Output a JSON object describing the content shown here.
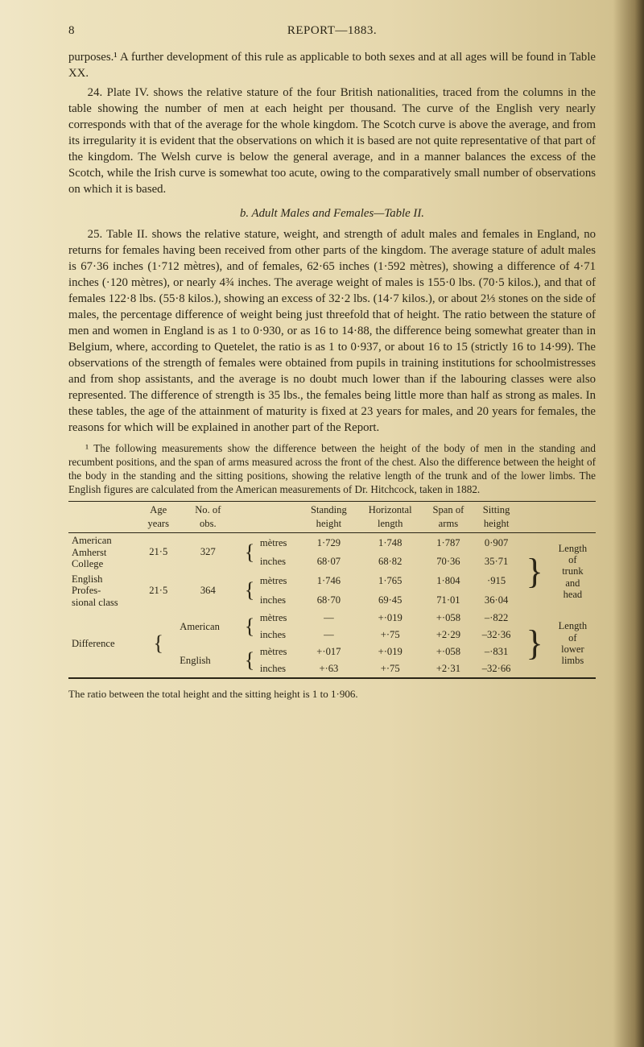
{
  "header": {
    "page_number": "8",
    "running": "REPORT—1883."
  },
  "para1": "purposes.¹ A further development of this rule as applicable to both sexes and at all ages will be found in Table XX.",
  "para2": "24. Plate IV. shows the relative stature of the four British nationalities, traced from the columns in the table showing the number of men at each height per thousand. The curve of the English very nearly corresponds with that of the average for the whole kingdom. The Scotch curve is above the average, and from its irregularity it is evident that the observations on which it is based are not quite representative of that part of the kingdom. The Welsh curve is below the general average, and in a manner balances the excess of the Scotch, while the Irish curve is somewhat too acute, owing to the comparatively small number of observations on which it is based.",
  "section_b": "b. Adult Males and Females—Table II.",
  "para3": "25. Table II. shows the relative stature, weight, and strength of adult males and females in England, no returns for females having been received from other parts of the kingdom. The average stature of adult males is 67·36 inches (1·712 mètres), and of females, 62·65 inches (1·592 mètres), showing a difference of 4·71 inches (·120 mètres), or nearly 4¾ inches. The average weight of males is 155·0 lbs. (70·5 kilos.), and that of females 122·8 lbs. (55·8 kilos.), showing an excess of 32·2 lbs. (14·7 kilos.), or about 2⅓ stones on the side of males, the percentage difference of weight being just threefold that of height. The ratio between the stature of men and women in England is as 1 to 0·930, or as 16 to 14·88, the difference being somewhat greater than in Belgium, where, according to Quetelet, the ratio is as 1 to 0·937, or about 16 to 15 (strictly 16 to 14·99). The observations of the strength of females were obtained from pupils in training institutions for schoolmistresses and from shop assistants, and the average is no doubt much lower than if the labouring classes were also represented. The difference of strength is 35 lbs., the females being little more than half as strong as males. In these tables, the age of the attainment of maturity is fixed at 23 years for males, and 20 years for females, the reasons for which will be explained in another part of the Report.",
  "footnote": "¹ The following measurements show the difference between the height of the body of men in the standing and recumbent positions, and the span of arms measured across the front of the chest. Also the difference between the height of the body in the standing and the sitting positions, showing the relative length of the trunk and of the lower limbs. The English figures are calculated from the American measurements of Dr. Hitchcock, taken in 1882.",
  "table": {
    "headers": {
      "age": "Age\nyears",
      "no": "No. of\nobs.",
      "standing": "Standing\nheight",
      "horizontal": "Horizontal\nlength",
      "span": "Span of\narms",
      "sitting": "Sitting\nheight"
    },
    "rows": {
      "r1_label": "American\nAmherst\nCollege",
      "r1_age": "21·5",
      "r1_no": "327",
      "r1_unit_m": "mètres",
      "r1_unit_i": "inches",
      "r1_stand_m": "1·729",
      "r1_stand_i": "68·07",
      "r1_horiz_m": "1·748",
      "r1_horiz_i": "68·82",
      "r1_span_m": "1·787",
      "r1_span_i": "70·36",
      "r1_sit_m": "0·907",
      "r1_sit_i": "35·71",
      "r1_note": "Length\nof\ntrunk\nand\nhead",
      "r2_label": "English\nProfes-\nsional class",
      "r2_age": "21·5",
      "r2_no": "364",
      "r2_unit_m": "mètres",
      "r2_unit_i": "inches",
      "r2_stand_m": "1·746",
      "r2_stand_i": "68·70",
      "r2_horiz_m": "1·765",
      "r2_horiz_i": "69·45",
      "r2_span_m": "1·804",
      "r2_span_i": "71·01",
      "r2_sit_m": "·915",
      "r2_sit_i": "36·04",
      "r3_label": "Difference",
      "r3_sub1": "American",
      "r3_sub2": "English",
      "r3a_unit_m": "mètres",
      "r3a_unit_i": "inches",
      "r3b_unit_m": "mètres",
      "r3b_unit_i": "inches",
      "r3a_stand_m": "—",
      "r3a_stand_i": "—",
      "r3b_stand_m": "+·017",
      "r3b_stand_i": "+·63",
      "r3a_horiz_m": "+·019",
      "r3a_horiz_i": "+·75",
      "r3b_horiz_m": "+·019",
      "r3b_horiz_i": "+·75",
      "r3a_span_m": "+·058",
      "r3a_span_i": "+2·29",
      "r3b_span_m": "+·058",
      "r3b_span_i": "+2·31",
      "r3a_sit_m": "–·822",
      "r3a_sit_i": "–32·36",
      "r3b_sit_m": "–·831",
      "r3b_sit_i": "–32·66",
      "r3_note": "Length\nof\nlower\nlimbs"
    }
  },
  "caption": "The ratio between the total height and the sitting height is 1 to 1·906."
}
